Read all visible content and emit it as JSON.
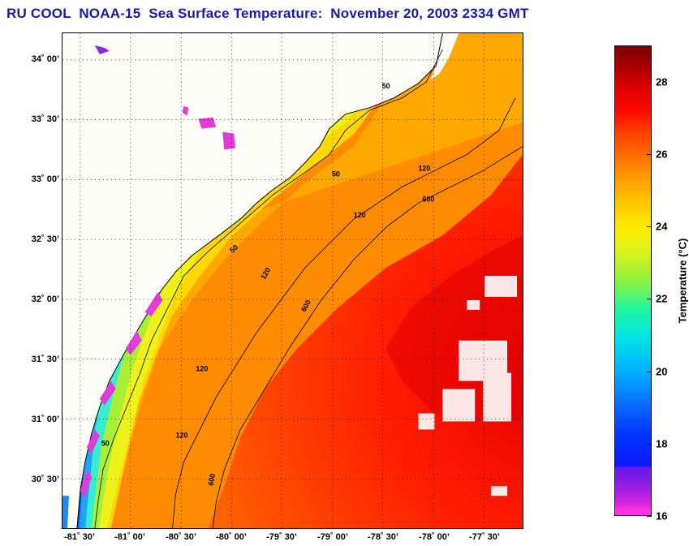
{
  "title": "RU COOL  NOAA-15  Sea Surface Temperature:  November 20, 2003 2334 GMT",
  "map": {
    "latitude_labels": [
      "34˚ 00’",
      "33˚ 30’",
      "33˚ 00’",
      "32˚ 30’",
      "32˚ 00’",
      "31˚ 30’",
      "31˚ 00’",
      "30˚ 30’"
    ],
    "longitude_labels": [
      "-81˚ 30’",
      "-81˚ 00’",
      "-80˚ 30’",
      "-80˚ 00’",
      "-79˚ 30’",
      "-79˚ 00’",
      "-78˚ 30’",
      "-78˚ 00’",
      "-77˚ 30’"
    ],
    "isobath_labels": [
      "50",
      "120",
      "600"
    ],
    "land_color": "#fcfcf6",
    "grid": true
  },
  "colorbar": {
    "label": "Temperature (°C)",
    "ticks": [
      "16",
      "18",
      "20",
      "22",
      "24",
      "26",
      "28"
    ],
    "min": 16,
    "max": 29
  }
}
